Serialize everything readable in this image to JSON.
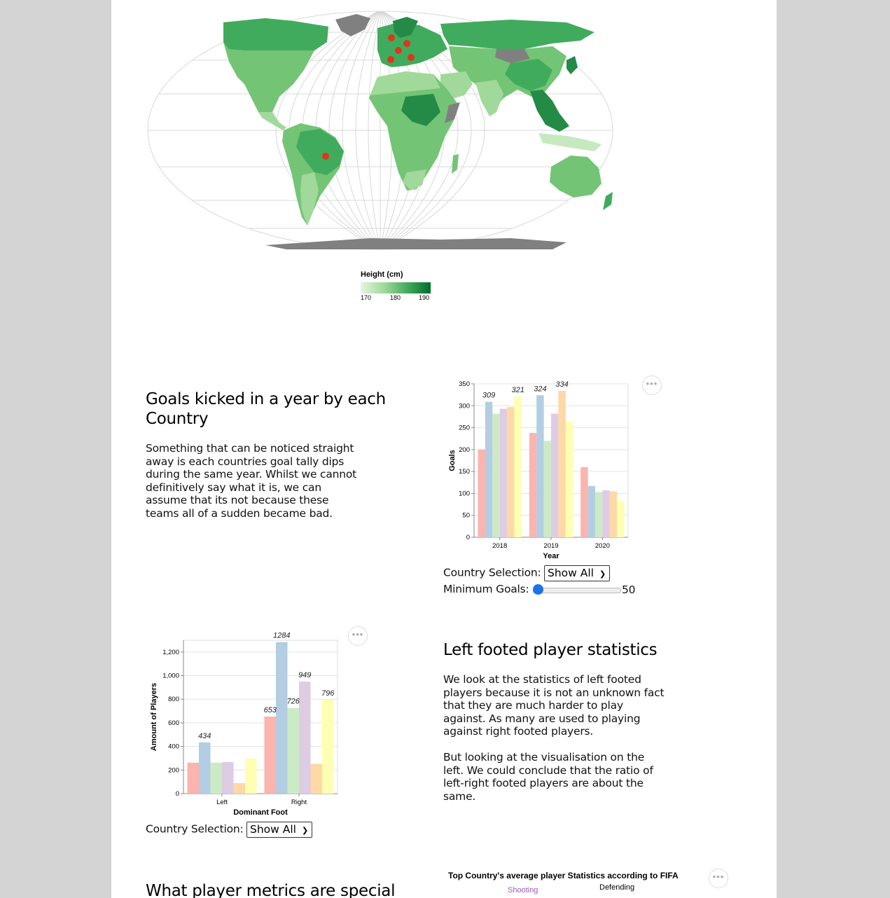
{
  "map": {
    "legend_title": "Height (cm)",
    "legend_ticks": [
      "170",
      "180",
      "190"
    ],
    "legend_colors": [
      "#e5f5e0",
      "#a1d99b",
      "#41ab5d",
      "#006d2c"
    ],
    "marker_color": "#d9381e",
    "no_data_color": "#808080"
  },
  "section_goals": {
    "title": "Goals kicked in a year by each Country",
    "text": "Something that can be noticed straight away is each countries goal tally dips during the same year. Whilst we cannot definitively say what it is, we can assume that its not because these teams all of a sudden became bad.",
    "country_label": "Country Selection:",
    "country_value": "Show All",
    "min_goals_label": "Minimum Goals:",
    "min_goals_value": "50",
    "slider_fraction": 0.0
  },
  "section_left": {
    "title": "Left footed player statistics",
    "text1": "We look at the statistics of left footed players because it is not an unknown fact that they are much harder to play against. As many are used to playing against right footed players.",
    "text2": "But looking at the visualisation on the left. We could conclude that the ratio of left-right footed players are about the same.",
    "country_label": "Country Selection:",
    "country_value": "Show All"
  },
  "section_metrics": {
    "title": "What player metrics are special",
    "radar_title": "Top Country's average player Statistics according to FIFA",
    "radar_axes": [
      "Shooting",
      "Defending"
    ]
  },
  "menu_glyph": "•••",
  "series_colors": [
    "#fbb4ae",
    "#b3cde3",
    "#ccebc5",
    "#decbe4",
    "#fed9a6",
    "#ffffb3"
  ],
  "chart_data": [
    {
      "type": "bar",
      "xlabel": "Year",
      "ylabel": "Goals",
      "categories": [
        "2018",
        "2019",
        "2020"
      ],
      "ylim": [
        0,
        350
      ],
      "yticks": [
        0,
        50,
        100,
        150,
        200,
        250,
        300,
        350
      ],
      "grid": true,
      "series": [
        {
          "values": [
            200,
            238,
            160
          ]
        },
        {
          "values": [
            309,
            324,
            117
          ]
        },
        {
          "values": [
            282,
            220,
            103
          ]
        },
        {
          "values": [
            293,
            282,
            107
          ]
        },
        {
          "values": [
            297,
            334,
            105
          ]
        },
        {
          "values": [
            321,
            265,
            84
          ]
        }
      ],
      "data_labels": [
        {
          "category": "2018",
          "series": 1,
          "text": "309"
        },
        {
          "category": "2018",
          "series": 5,
          "text": "321"
        },
        {
          "category": "2019",
          "series": 1,
          "text": "324"
        },
        {
          "category": "2019",
          "series": 4,
          "text": "334"
        }
      ]
    },
    {
      "type": "bar",
      "xlabel": "Dominant Foot",
      "ylabel": "Amount of Players",
      "categories": [
        "Left",
        "Right"
      ],
      "ylim": [
        0,
        1300
      ],
      "yticks": [
        0,
        200,
        400,
        600,
        800,
        1000,
        1200
      ],
      "ytick_labels": [
        "0",
        "200",
        "400",
        "600",
        "800",
        "1,000",
        "1,200"
      ],
      "grid": true,
      "series": [
        {
          "values": [
            262,
            653
          ]
        },
        {
          "values": [
            434,
            1284
          ]
        },
        {
          "values": [
            262,
            726
          ]
        },
        {
          "values": [
            267,
            949
          ]
        },
        {
          "values": [
            89,
            253
          ]
        },
        {
          "values": [
            298,
            796
          ]
        }
      ],
      "data_labels": [
        {
          "category": "Left",
          "series": 1,
          "text": "434"
        },
        {
          "category": "Right",
          "series": 0,
          "text": "653"
        },
        {
          "category": "Right",
          "series": 1,
          "text": "1284"
        },
        {
          "category": "Right",
          "series": 2,
          "text": "726"
        },
        {
          "category": "Right",
          "series": 3,
          "text": "949"
        },
        {
          "category": "Right",
          "series": 5,
          "text": "796"
        }
      ]
    }
  ]
}
